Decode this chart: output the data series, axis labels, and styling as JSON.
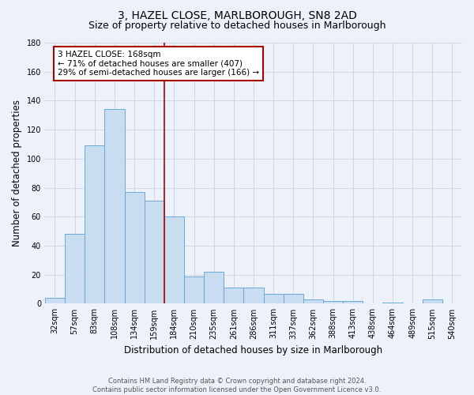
{
  "title1": "3, HAZEL CLOSE, MARLBOROUGH, SN8 2AD",
  "title2": "Size of property relative to detached houses in Marlborough",
  "xlabel": "Distribution of detached houses by size in Marlborough",
  "ylabel": "Number of detached properties",
  "categories": [
    "32sqm",
    "57sqm",
    "83sqm",
    "108sqm",
    "134sqm",
    "159sqm",
    "184sqm",
    "210sqm",
    "235sqm",
    "261sqm",
    "286sqm",
    "311sqm",
    "337sqm",
    "362sqm",
    "388sqm",
    "413sqm",
    "438sqm",
    "464sqm",
    "489sqm",
    "515sqm",
    "540sqm"
  ],
  "values": [
    4,
    48,
    109,
    134,
    77,
    71,
    60,
    19,
    22,
    11,
    11,
    7,
    7,
    3,
    2,
    2,
    0,
    1,
    0,
    3,
    0
  ],
  "bar_color": "#c9ddf0",
  "bar_edge_color": "#6aaad4",
  "ylim": [
    0,
    180
  ],
  "yticks": [
    0,
    20,
    40,
    60,
    80,
    100,
    120,
    140,
    160,
    180
  ],
  "vline_x": 5.5,
  "annotation_text": "3 HAZEL CLOSE: 168sqm\n← 71% of detached houses are smaller (407)\n29% of semi-detached houses are larger (166) →",
  "annotation_box_color": "#ffffff",
  "annotation_box_edge_color": "#aa0000",
  "vline_color": "#aa0000",
  "footer1": "Contains HM Land Registry data © Crown copyright and database right 2024.",
  "footer2": "Contains public sector information licensed under the Open Government Licence v3.0.",
  "background_color": "#edf2fa",
  "plot_background_color": "#edf2fa",
  "grid_color": "#d0d8e8",
  "title_fontsize": 10,
  "subtitle_fontsize": 9,
  "tick_fontsize": 7,
  "ylabel_fontsize": 8.5,
  "xlabel_fontsize": 8.5,
  "annotation_fontsize": 7.5,
  "footer_fontsize": 6
}
